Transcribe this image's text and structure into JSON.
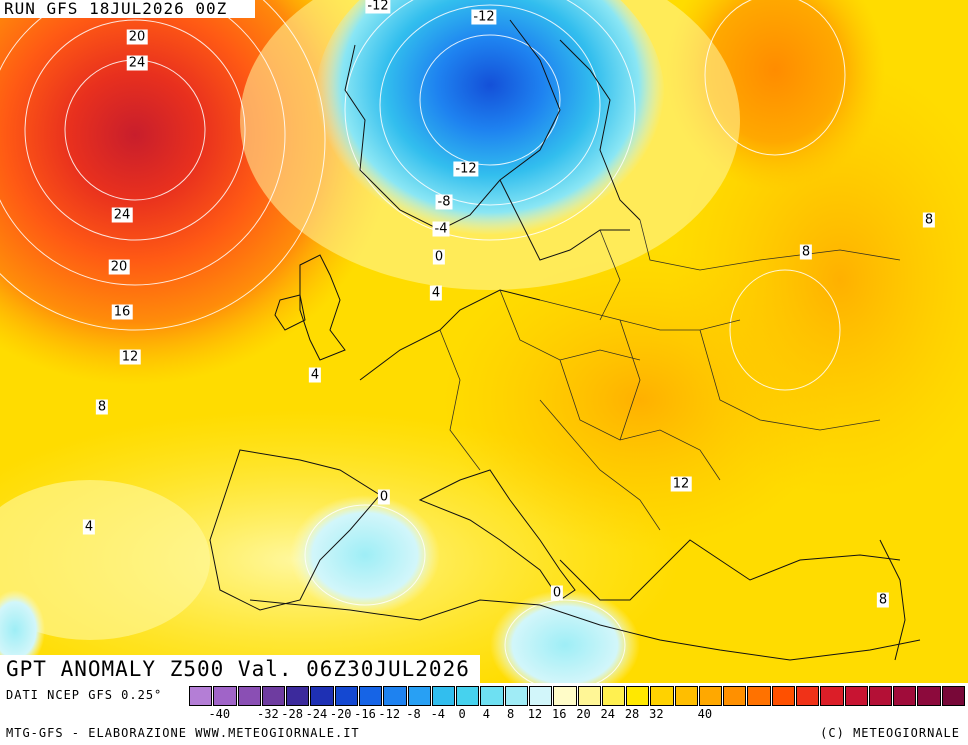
{
  "header": {
    "run": "RUN GFS 18JUL2026 00Z"
  },
  "map": {
    "title": "GPT ANOMALY Z500 Val. 06Z30JUL2026",
    "contour_labels": [
      "-12",
      "-12",
      "20",
      "24",
      "-12",
      "-8",
      "-4",
      "0",
      "4",
      "24",
      "20",
      "16",
      "12",
      "8",
      "4",
      "8",
      "8",
      "4",
      "0",
      "12",
      "0",
      "8"
    ]
  },
  "legend": {
    "colors": [
      "#b47ed6",
      "#a064c8",
      "#8a4fb4",
      "#6e3ca0",
      "#3c2a9c",
      "#1e30b4",
      "#1448d2",
      "#1664e6",
      "#1e82f0",
      "#28a0f4",
      "#32beee",
      "#46d2ee",
      "#6ee0f2",
      "#a0ecf6",
      "#d2f6fa",
      "#fffcc8",
      "#fff696",
      "#fff050",
      "#ffe800",
      "#ffd200",
      "#ffbe00",
      "#ffa800",
      "#ff9000",
      "#ff7200",
      "#ff5000",
      "#f03218",
      "#dc1e28",
      "#c81432",
      "#b41036",
      "#a00c3a",
      "#8c0a3c",
      "#780838"
    ],
    "ticks": [
      "-40",
      "-32",
      "-28",
      "-24",
      "-20",
      "-16",
      "-12",
      "-8",
      "-4",
      "0",
      "4",
      "8",
      "12",
      "16",
      "20",
      "24",
      "28",
      "32",
      "40"
    ]
  },
  "footer": {
    "data_source": "DATI NCEP GFS 0.25°",
    "credit_left": "MTG-GFS - ELABORAZIONE WWW.METEOGIORNALE.IT",
    "credit_right": "(C) METEOGIORNALE"
  }
}
